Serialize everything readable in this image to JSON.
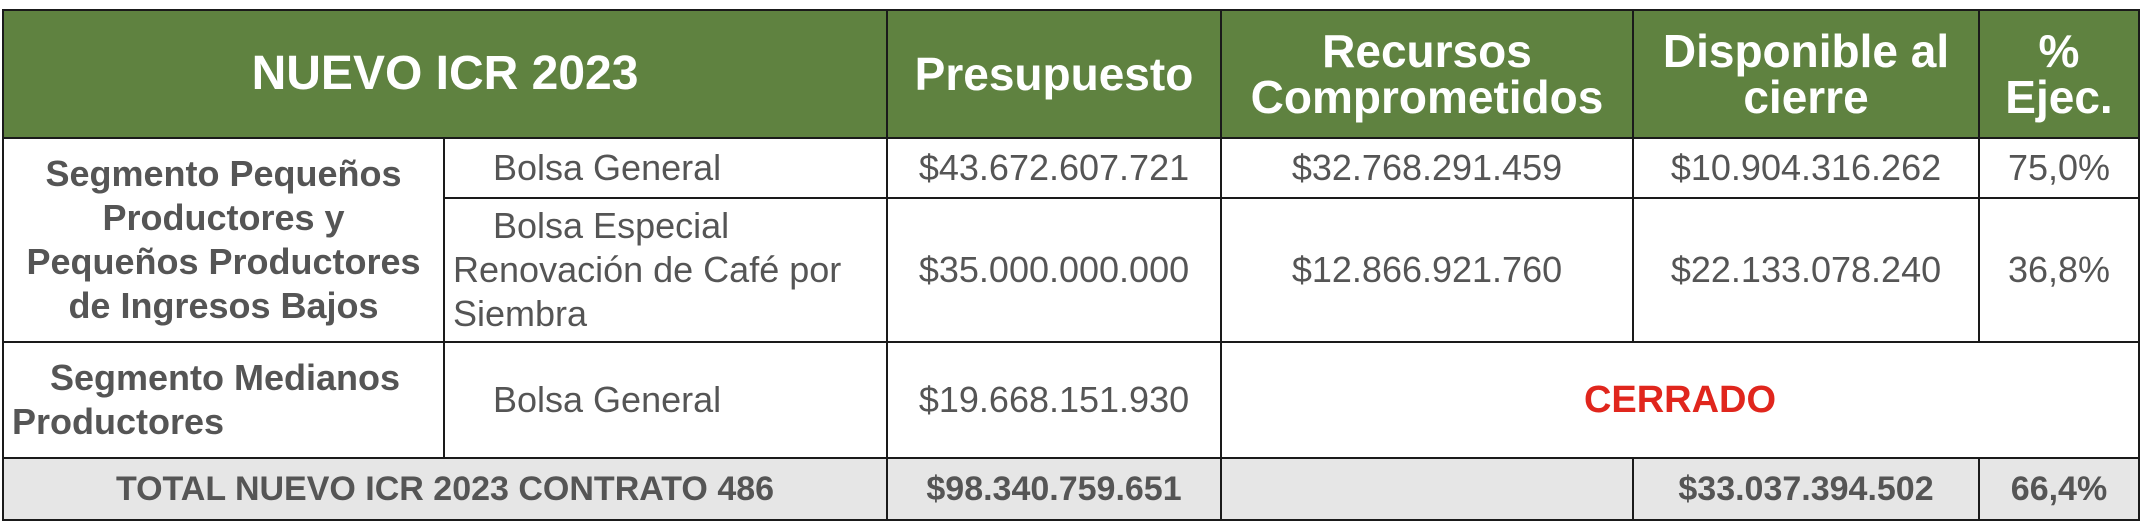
{
  "header": {
    "title": "NUEVO ICR 2023",
    "presupuesto": "Presupuesto",
    "recursos_l1": "Recursos",
    "recursos_l2": "Comprometidos",
    "disponible_l1": "Disponible al",
    "disponible_l2": "cierre",
    "ejec_l1": "%",
    "ejec_l2": "Ejec."
  },
  "segments": [
    {
      "name_lines": [
        "Segmento Pequeños",
        "Productores y",
        "Pequeños Productores",
        "de Ingresos Bajos"
      ],
      "rows": [
        {
          "bolsa_lines": [
            "Bolsa General"
          ],
          "presupuesto": "$43.672.607.721",
          "comprometidos": "$32.768.291.459",
          "disponible": "$10.904.316.262",
          "ejec": "75,0%"
        },
        {
          "bolsa_lines": [
            "Bolsa Especial",
            "Renovación de Café por",
            "Siembra"
          ],
          "presupuesto": "$35.000.000.000",
          "comprometidos": "$12.866.921.760",
          "disponible": "$22.133.078.240",
          "ejec": "36,8%"
        }
      ]
    },
    {
      "name_lines": [
        "Segmento Medianos",
        "Productores"
      ],
      "rows": [
        {
          "bolsa_lines": [
            "Bolsa General"
          ],
          "presupuesto": "$19.668.151.930",
          "status": "CERRADO"
        }
      ]
    }
  ],
  "total": {
    "label": "TOTAL NUEVO ICR 2023 CONTRATO 486",
    "presupuesto": "$98.340.759.651",
    "comprometidos": "",
    "disponible": "$33.037.394.502",
    "ejec": "66,4%"
  },
  "colors": {
    "header_bg": "#5f8240",
    "total_bg": "#e6e6e6",
    "cerrado": "#e0261d"
  }
}
